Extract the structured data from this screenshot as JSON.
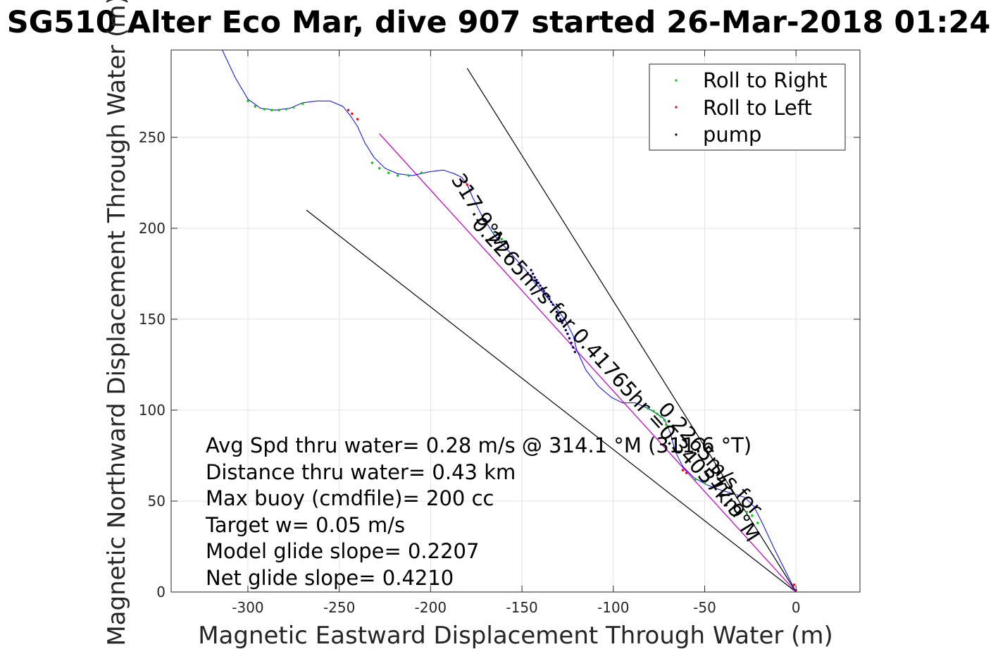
{
  "chart_data": {
    "type": "line",
    "title": "SG510 Alter Eco Mar, dive 907 started 26-Mar-2018 01:24",
    "xlabel": "Magnetic Eastward Displacement Through Water (m)",
    "ylabel": "Magnetic Northward Displacement Through Water (m)",
    "xlim": [
      -342,
      35
    ],
    "ylim": [
      0,
      298
    ],
    "xticks": [
      -300,
      -250,
      -200,
      -150,
      -100,
      -50,
      0
    ],
    "yticks": [
      0,
      50,
      100,
      150,
      200,
      250
    ],
    "grid": true,
    "legend_position": "top-right",
    "colors": {
      "track": "#0000ff",
      "roll_right": "#00cc00",
      "roll_left": "#ff0000",
      "pump": "#000080",
      "glide_line": "#cc00cc",
      "cone_line": "#000000",
      "text": "#000000",
      "axis_label": "#262626"
    },
    "legend": [
      {
        "label": "Roll to Right",
        "color": "#00cc00"
      },
      {
        "label": "Roll to Left",
        "color": "#ff0000"
      },
      {
        "label": "pump",
        "color": "#000000"
      }
    ],
    "series": [
      {
        "name": "track",
        "x": [
          -314,
          -307,
          -300,
          -293,
          -285,
          -277,
          -270,
          -262,
          -255,
          -248,
          -244,
          -240,
          -236,
          -231,
          -225,
          -218,
          -210,
          -201,
          -193,
          -187,
          -183,
          -180,
          -177,
          -172,
          -165,
          -156,
          -148,
          -143,
          -137,
          -131,
          -126,
          -122,
          -120,
          -115,
          -108,
          -101,
          -95,
          -88,
          -81,
          -76,
          -72,
          -69,
          -66,
          -62,
          -56,
          -49,
          -41,
          -34,
          -28,
          -23,
          -18,
          -12,
          -6,
          -2,
          0
        ],
        "y": [
          298,
          283,
          271,
          266,
          265,
          266,
          269,
          270,
          270,
          267,
          262,
          256,
          247,
          239,
          233,
          230,
          229,
          231,
          232,
          230,
          228,
          224,
          217,
          207,
          196,
          186,
          177,
          170,
          163,
          156,
          149,
          141,
          133,
          122,
          113,
          107,
          104,
          104,
          101,
          98,
          95,
          88,
          77,
          69,
          63,
          59,
          56,
          54,
          52,
          47,
          37,
          24,
          12,
          4,
          0
        ]
      },
      {
        "name": "Roll to Right",
        "x": [
          -300,
          -296,
          -291,
          -287,
          -283,
          -279,
          -275,
          -270,
          -232,
          -228,
          -223,
          -218,
          -212,
          -205,
          -165,
          -161,
          -81,
          -78,
          -76,
          -74,
          -72,
          -71,
          -55,
          -50,
          -27,
          -24,
          -21
        ],
        "y": [
          270,
          267,
          265.5,
          265,
          265,
          265.5,
          266.5,
          268.5,
          236,
          233,
          230.5,
          229,
          229,
          230.5,
          198,
          194,
          101,
          99.5,
          98,
          96.5,
          94.5,
          92,
          62,
          60,
          44,
          42,
          38
        ]
      },
      {
        "name": "Roll to Left",
        "x": [
          -245,
          -243,
          -240,
          -183,
          -180,
          -178,
          -62,
          -60,
          -1,
          0
        ],
        "y": [
          265,
          263,
          260,
          226,
          224,
          221,
          67,
          65.5,
          4,
          1
        ]
      },
      {
        "name": "pump",
        "x": [
          -145,
          -144,
          -143,
          -142,
          -141,
          -140,
          -139,
          -138,
          -137,
          -136,
          -135,
          -134,
          -133,
          -132,
          -131,
          -130,
          -129,
          -128,
          -127,
          -126,
          -125,
          -124,
          -123,
          -122,
          -121
        ],
        "y": [
          177,
          175,
          173,
          171.5,
          170,
          168.5,
          167,
          165.5,
          164,
          162.5,
          161,
          159.5,
          158,
          156,
          154,
          152,
          150,
          148,
          146,
          144,
          142,
          139.5,
          137,
          134.5,
          132
        ]
      },
      {
        "name": "glide_line",
        "x": [
          -228,
          0
        ],
        "y": [
          252,
          0
        ]
      },
      {
        "name": "cone_upper",
        "x": [
          -180,
          0
        ],
        "y": [
          288,
          0
        ]
      },
      {
        "name": "cone_lower",
        "x": [
          -268,
          0
        ],
        "y": [
          210,
          0
        ]
      }
    ],
    "annotations": [
      {
        "text": "317.9°M",
        "x": -189,
        "y": 227,
        "angle": 58
      },
      {
        "text": "0.2265m/s for 0.41765hr =0.34057km",
        "x": -178,
        "y": 202,
        "angle": 48
      },
      {
        "text": "317.9°M",
        "x": -51,
        "y": 67,
        "angle": 58
      },
      {
        "text": "0.2265m/s for",
        "x": -76,
        "y": 100,
        "angle": 48
      }
    ],
    "info_lines": [
      "Avg Spd thru water=  0.28 m/s @ 314.1 °M (311.6 °T)",
      "Distance thru water=  0.43 km",
      "Max buoy (cmdfile)= 200 cc",
      "Target w= 0.05 m/s",
      "Model glide slope= 0.2207",
      "Net glide slope= 0.4210"
    ]
  }
}
